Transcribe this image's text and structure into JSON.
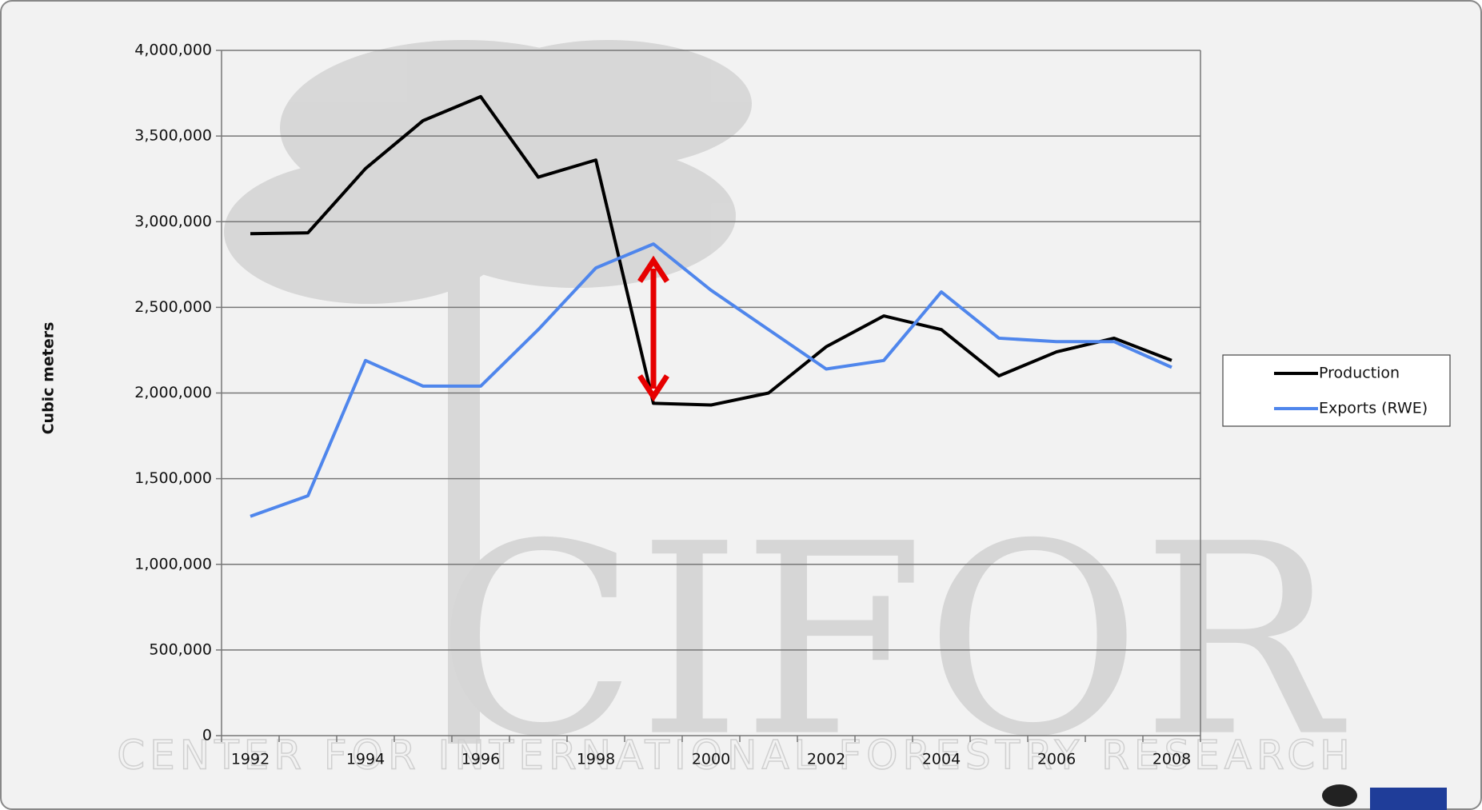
{
  "chart_data": {
    "type": "line",
    "y_label": "Cubic meters",
    "categories": [
      "1992",
      null,
      "1994",
      null,
      "1996",
      null,
      "1998",
      null,
      "2000",
      null,
      "2002",
      null,
      "2004",
      null,
      "2006",
      null,
      "2008"
    ],
    "series": [
      {
        "name": "Production",
        "color": "#000000",
        "values": [
          2930000,
          2935000,
          3310000,
          3590000,
          3730000,
          3260000,
          3360000,
          1940000,
          1930000,
          2000000,
          2270000,
          2450000,
          2370000,
          2100000,
          2240000,
          2320000,
          2190000
        ]
      },
      {
        "name": "Exports (RWE)",
        "color": "#4f86ec",
        "values": [
          1280000,
          1400000,
          2190000,
          2040000,
          2040000,
          2370000,
          2730000,
          2870000,
          2600000,
          2370000,
          2140000,
          2190000,
          2590000,
          2320000,
          2300000,
          2300000,
          2150000
        ]
      }
    ],
    "ylim": [
      0,
      4000000
    ],
    "yticks": [
      0,
      {
        "value": 500000,
        "label": "500,000"
      },
      {
        "value": 1000000,
        "label": "1,000,000"
      },
      {
        "value": 1500000,
        "label": "1,500,000"
      },
      {
        "value": 2000000,
        "label": "2,000,000"
      },
      {
        "value": 2500000,
        "label": "2,500,000"
      },
      {
        "value": 3000000,
        "label": "3,000,000"
      },
      {
        "value": 3500000,
        "label": "3,500,000"
      },
      {
        "value": 4000000,
        "label": "4,000,000"
      }
    ],
    "grid": true,
    "legend": "right"
  },
  "watermark": {
    "logo": "CIFOR",
    "tagline": "CENTER FOR INTERNATIONAL FORESTRY RESEARCH"
  }
}
